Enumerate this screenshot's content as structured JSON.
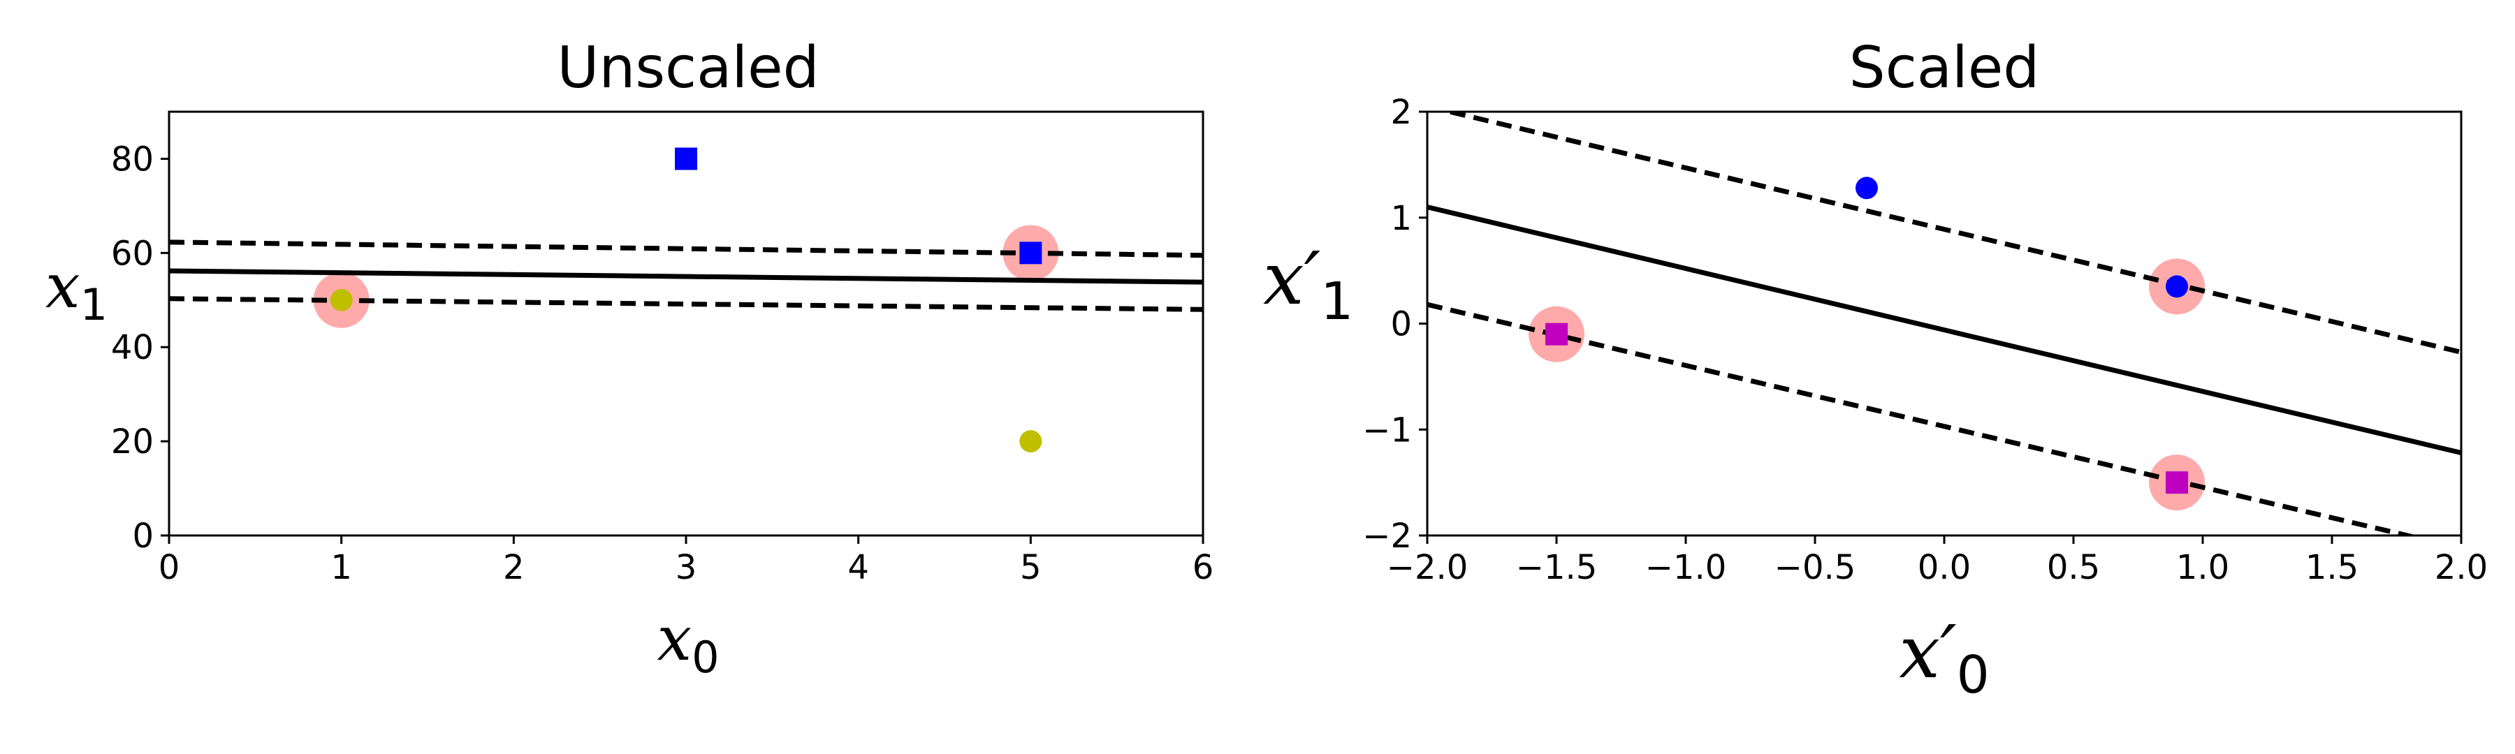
{
  "chart_data": [
    {
      "type": "scatter",
      "title": "Unscaled",
      "xlabel": "x",
      "xlabel_sub": "0",
      "ylabel": "x",
      "ylabel_sub": "1",
      "xlim": [
        0,
        6
      ],
      "ylim": [
        0,
        90
      ],
      "xticks": [
        0,
        1,
        2,
        3,
        4,
        5,
        6
      ],
      "xtick_labels": [
        "0",
        "1",
        "2",
        "3",
        "4",
        "5",
        "6"
      ],
      "yticks": [
        0,
        20,
        40,
        60,
        80
      ],
      "ytick_labels": [
        "0",
        "20",
        "40",
        "60",
        "80"
      ],
      "grid": false,
      "colors": {
        "square": "#0000ff",
        "circle": "#bfbf00",
        "support": "#ffaaaa",
        "line": "#000000"
      },
      "points": [
        {
          "x": 1,
          "y": 50,
          "marker": "circle",
          "color": "#bfbf00"
        },
        {
          "x": 5,
          "y": 20,
          "marker": "circle",
          "color": "#bfbf00"
        },
        {
          "x": 3,
          "y": 80,
          "marker": "square",
          "color": "#0000ff"
        },
        {
          "x": 5,
          "y": 60,
          "marker": "square",
          "color": "#0000ff"
        }
      ],
      "support_vectors": [
        {
          "x": 1,
          "y": 50
        },
        {
          "x": 5,
          "y": 60
        }
      ],
      "decision_boundary": {
        "x": [
          0,
          6
        ],
        "y": [
          56.2,
          53.8
        ]
      },
      "margin_upper": {
        "x": [
          0,
          6
        ],
        "y": [
          62.3,
          59.5
        ]
      },
      "margin_lower": {
        "x": [
          0,
          6
        ],
        "y": [
          50.3,
          48.0
        ]
      }
    },
    {
      "type": "scatter",
      "title": "Scaled",
      "xlabel": "x′",
      "xlabel_sub": "0",
      "ylabel": "x′",
      "ylabel_sub": "1",
      "xlim": [
        -2,
        2
      ],
      "ylim": [
        -2,
        2
      ],
      "xticks": [
        -2,
        -1.5,
        -1,
        -0.5,
        0,
        0.5,
        1,
        1.5,
        2
      ],
      "xtick_labels": [
        "−2.0",
        "−1.5",
        "−1.0",
        "−0.5",
        "0.0",
        "0.5",
        "1.0",
        "1.5",
        "2.0"
      ],
      "yticks": [
        -2,
        -1,
        0,
        1,
        2
      ],
      "ytick_labels": [
        "−2",
        "−1",
        "0",
        "1",
        "2"
      ],
      "grid": false,
      "colors": {
        "square": "#bf00bf",
        "circle": "#0000ff",
        "support": "#ffaaaa",
        "line": "#000000"
      },
      "points": [
        {
          "x": -1.5,
          "y": -0.1,
          "marker": "square",
          "color": "#bf00bf"
        },
        {
          "x": 0.9,
          "y": -1.5,
          "marker": "square",
          "color": "#bf00bf"
        },
        {
          "x": -0.3,
          "y": 1.28,
          "marker": "circle",
          "color": "#0000ff"
        },
        {
          "x": 0.9,
          "y": 0.35,
          "marker": "circle",
          "color": "#0000ff"
        }
      ],
      "support_vectors": [
        {
          "x": -1.5,
          "y": -0.1
        },
        {
          "x": 0.9,
          "y": -1.5
        },
        {
          "x": 0.9,
          "y": 0.35
        }
      ],
      "decision_boundary": {
        "x": [
          -2,
          2
        ],
        "y": [
          1.1,
          -1.22
        ]
      },
      "margin_upper": {
        "x": [
          -2,
          2
        ],
        "y": [
          2.05,
          -0.27
        ]
      },
      "margin_lower": {
        "x": [
          -2,
          2
        ],
        "y": [
          0.18,
          -2.12
        ]
      }
    }
  ]
}
